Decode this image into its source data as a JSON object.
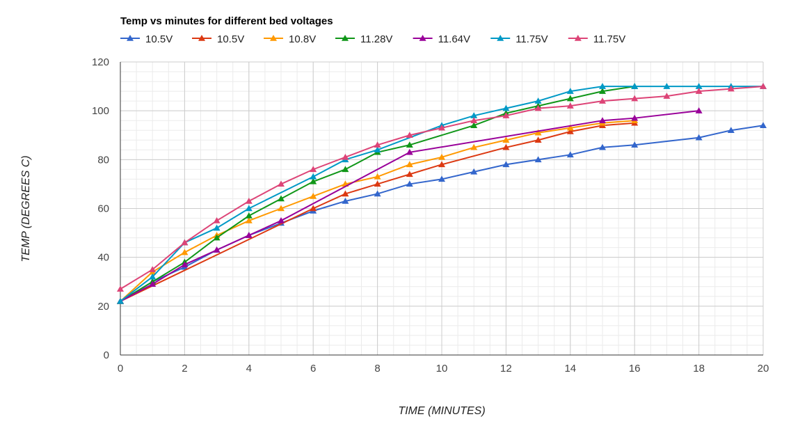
{
  "chart_data": {
    "type": "line",
    "title": "Temp vs minutes for different bed voltages",
    "xlabel": "TIME (MINUTES)",
    "ylabel": "TEMP (DEGREES C)",
    "xlim": [
      0,
      20
    ],
    "ylim": [
      0,
      120
    ],
    "xticks": [
      0,
      2,
      4,
      6,
      8,
      10,
      12,
      14,
      16,
      18,
      20
    ],
    "yticks": [
      0,
      20,
      40,
      60,
      80,
      100,
      120
    ],
    "grid": true,
    "legend_position": "top-left",
    "marker": "triangle",
    "series": [
      {
        "name": "10.5V",
        "color": "#3366cc",
        "x": [
          0,
          1,
          2,
          3,
          4,
          5,
          6,
          7,
          8,
          9,
          10,
          11,
          12,
          13,
          14,
          15,
          16,
          18,
          19,
          20
        ],
        "y": [
          22,
          30,
          36,
          43,
          49,
          54,
          59,
          63,
          66,
          70,
          72,
          75,
          78,
          80,
          82,
          85,
          86,
          89,
          92,
          94
        ]
      },
      {
        "name": "10.5V",
        "color": "#dc3912",
        "x": [
          0,
          6,
          7,
          8,
          9,
          10,
          12,
          13,
          14,
          15,
          16
        ],
        "y": [
          22,
          60,
          66,
          70,
          74,
          78,
          85,
          88,
          91.5,
          94,
          95
        ]
      },
      {
        "name": "10.8V",
        "color": "#ff9900",
        "x": [
          0,
          1,
          2,
          3,
          4,
          5,
          6,
          7,
          8,
          9,
          10,
          11,
          12,
          13,
          14,
          15,
          16
        ],
        "y": [
          22,
          34,
          42,
          49,
          55,
          60,
          65,
          70,
          73,
          78,
          81,
          85,
          88,
          91,
          93,
          95,
          96
        ]
      },
      {
        "name": "11.28V",
        "color": "#109618",
        "x": [
          0,
          1,
          2,
          3,
          4,
          5,
          6,
          7,
          8,
          9,
          11,
          12,
          13,
          14,
          15,
          16
        ],
        "y": [
          22,
          30,
          38,
          48,
          57,
          64,
          71,
          76,
          83,
          86,
          94,
          99,
          102,
          105,
          108,
          110
        ]
      },
      {
        "name": "11.64V",
        "color": "#990099",
        "x": [
          0,
          1,
          2,
          3,
          4,
          5,
          9,
          15,
          16,
          18
        ],
        "y": [
          22,
          29,
          37,
          43,
          49,
          55,
          83,
          96,
          97,
          100
        ]
      },
      {
        "name": "11.75V",
        "color": "#0099c6",
        "x": [
          0,
          1,
          2,
          3,
          4,
          6,
          7,
          8,
          10,
          11,
          12,
          13,
          14,
          15,
          16,
          17,
          18,
          19,
          20
        ],
        "y": [
          22,
          32,
          46,
          52,
          60,
          73,
          80,
          84,
          94,
          98,
          101,
          104,
          108,
          110,
          110,
          110,
          110,
          110,
          110
        ]
      },
      {
        "name": "11.75V",
        "color": "#dd4477",
        "x": [
          0,
          1,
          2,
          3,
          4,
          5,
          6,
          7,
          8,
          9,
          10,
          11,
          12,
          13,
          14,
          15,
          16,
          17,
          18,
          19,
          20
        ],
        "y": [
          27,
          35,
          46,
          55,
          63,
          70,
          76,
          81,
          86,
          90,
          93,
          96,
          98,
          101,
          102,
          104,
          105,
          106,
          108,
          109,
          110
        ]
      }
    ]
  }
}
